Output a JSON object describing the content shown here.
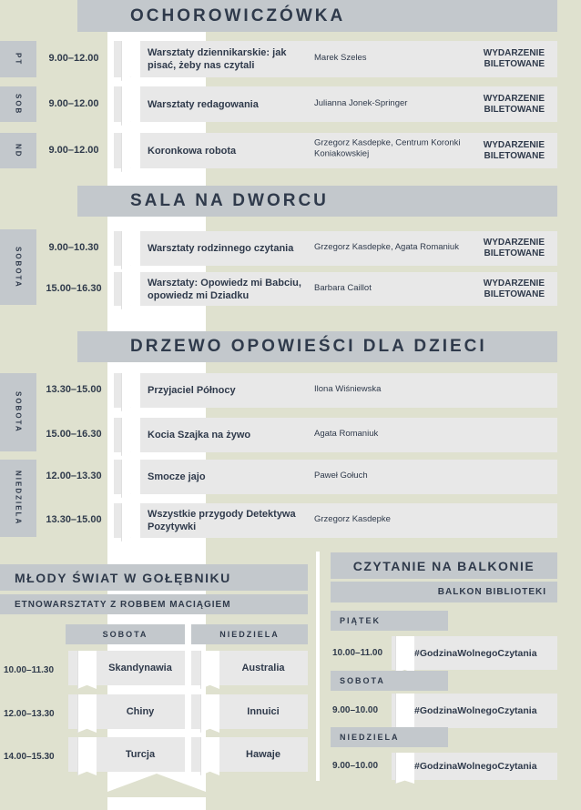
{
  "colors": {
    "background": "#dfe1cf",
    "header": "#c3c8cc",
    "row": "#e8e8e8",
    "text": "#2f3a4b"
  },
  "icons": {
    "ribbon": "bookmark-ribbon-icon"
  },
  "venues": [
    {
      "title": "OCHOROWICZÓWKA",
      "days": [
        {
          "label": "PT"
        },
        {
          "label": "SOB"
        },
        {
          "label": "ND"
        }
      ],
      "events": [
        {
          "time": "9.00–12.00",
          "title": "Warsztaty dziennikarskie: jak pisać, żeby nas czytali",
          "person": "Marek Szeles",
          "ticket": "WYDARZENIE BILETOWANE"
        },
        {
          "time": "9.00–12.00",
          "title": "Warsztaty redagowania",
          "person": "Julianna Jonek-Springer",
          "ticket": "WYDARZENIE BILETOWANE"
        },
        {
          "time": "9.00–12.00",
          "title": "Koronkowa robota",
          "person": "Grzegorz Kasdepke, Centrum Koronki Koniakowskiej",
          "ticket": "WYDARZENIE BILETOWANE"
        }
      ]
    },
    {
      "title": "SALA NA DWORCU",
      "days": [
        {
          "label": "SOBOTA"
        }
      ],
      "events": [
        {
          "time": "9.00–10.30",
          "title": "Warsztaty rodzinnego czytania",
          "person": "Grzegorz Kasdepke, Agata Romaniuk",
          "ticket": "WYDARZENIE BILETOWANE"
        },
        {
          "time": "15.00–16.30",
          "title": "Warsztaty: Opowiedz mi Babciu, opowiedz mi Dziadku",
          "person": "Barbara Caillot",
          "ticket": "WYDARZENIE BILETOWANE"
        }
      ]
    },
    {
      "title": "DRZEWO OPOWIEŚCI DLA DZIECI",
      "days": [
        {
          "label": "SOBOTA"
        },
        {
          "label": "NIEDZIELA"
        }
      ],
      "events": [
        {
          "time": "13.30–15.00",
          "title": "Przyjaciel Północy",
          "person": "Ilona Wiśniewska",
          "ticket": ""
        },
        {
          "time": "15.00–16.30",
          "title": "Kocia Szajka na żywo",
          "person": "Agata Romaniuk",
          "ticket": ""
        },
        {
          "time": "12.00–13.30",
          "title": "Smocze jajo",
          "person": "Paweł Gołuch",
          "ticket": ""
        },
        {
          "time": "13.30–15.00",
          "title": "Wszystkie przygody Detektywa Pozytywki",
          "person": "Grzegorz Kasdepke",
          "ticket": ""
        }
      ]
    }
  ],
  "mlody": {
    "title": "MŁODY ŚWIAT W GOŁĘBNIKU",
    "subtitle": "ETNOWARSZTATY Z ROBBEM MACIĄGIEM",
    "columns": [
      "SOBOTA",
      "NIEDZIELA"
    ],
    "rows": [
      {
        "time": "10.00–11.30",
        "cells": [
          "Skandynawia",
          "Australia"
        ]
      },
      {
        "time": "12.00–13.30",
        "cells": [
          "Chiny",
          "Innuici"
        ]
      },
      {
        "time": "14.00–15.30",
        "cells": [
          "Turcja",
          "Hawaje"
        ]
      }
    ]
  },
  "balkon": {
    "title": "CZYTANIE NA BALKONIE",
    "subtitle": "BALKON BIBLIOTEKI",
    "days": [
      {
        "label": "PIĄTEK",
        "time": "10.00–11.00",
        "event": "#GodzinaWolnegoCzytania"
      },
      {
        "label": "SOBOTA",
        "time": "9.00–10.00",
        "event": "#GodzinaWolnegoCzytania"
      },
      {
        "label": "NIEDZIELA",
        "time": "9.00–10.00",
        "event": "#GodzinaWolnegoCzytania"
      }
    ]
  }
}
